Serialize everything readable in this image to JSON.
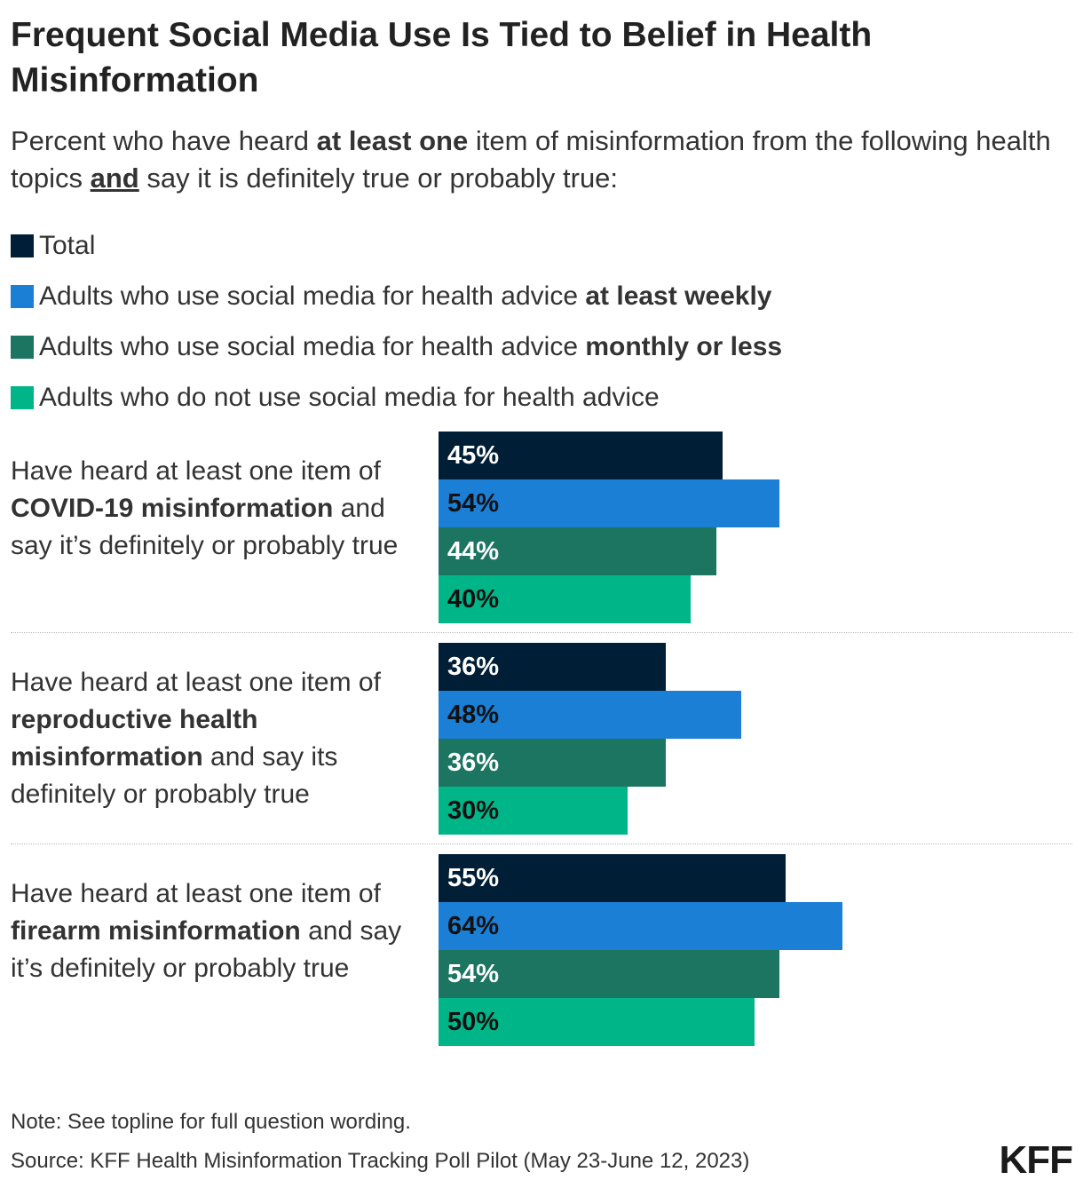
{
  "chart_data": {
    "type": "bar",
    "orientation": "horizontal",
    "title": "Frequent Social Media Use Is Tied to Belief in Health Misinformation",
    "subtitle": [
      {
        "text": "Percent who have heard "
      },
      {
        "text": "at least one",
        "bold": true
      },
      {
        "text": " item of misinformation from the following health topics "
      },
      {
        "text": "and",
        "bold": true,
        "underline": true
      },
      {
        "text": " say it is definitely true or probably true:"
      }
    ],
    "xlim": [
      0,
      100
    ],
    "grid": false,
    "legend_placement": "top",
    "series": [
      {
        "name": [
          {
            "text": "Total"
          }
        ],
        "color": "#001e36",
        "label_color": "#ffffff",
        "values": [
          45,
          36,
          55
        ]
      },
      {
        "name": [
          {
            "text": "Adults who use social media for health advice "
          },
          {
            "text": "at least weekly",
            "bold": true
          }
        ],
        "color": "#1b7fd6",
        "label_color": "#111111",
        "values": [
          54,
          48,
          64
        ]
      },
      {
        "name": [
          {
            "text": "Adults who use social media for health advice "
          },
          {
            "text": "monthly or less",
            "bold": true
          }
        ],
        "color": "#1b7561",
        "label_color": "#ffffff",
        "values": [
          44,
          36,
          54
        ]
      },
      {
        "name": [
          {
            "text": "Adults who do not use social media for health advice"
          }
        ],
        "color": "#00b688",
        "label_color": "#111111",
        "values": [
          40,
          30,
          50
        ]
      }
    ],
    "categories": [
      [
        {
          "text": "Have heard at least one item of "
        },
        {
          "text": "COVID-19 misinformation",
          "bold": true
        },
        {
          "text": " and say it’s definitely or probably true"
        }
      ],
      [
        {
          "text": "Have heard at least one item of "
        },
        {
          "text": "reproductive health misinformation",
          "bold": true
        },
        {
          "text": " and say its definitely or probably true"
        }
      ],
      [
        {
          "text": "Have heard at least one item of "
        },
        {
          "text": "firearm misinformation",
          "bold": true
        },
        {
          "text": " and say it’s definitely or probably true"
        }
      ]
    ],
    "value_suffix": "%",
    "note": "Note: See topline for full question wording.",
    "source": "Source: KFF Health Misinformation Tracking Poll Pilot (May 23-June 12, 2023)"
  },
  "logo": "KFF"
}
